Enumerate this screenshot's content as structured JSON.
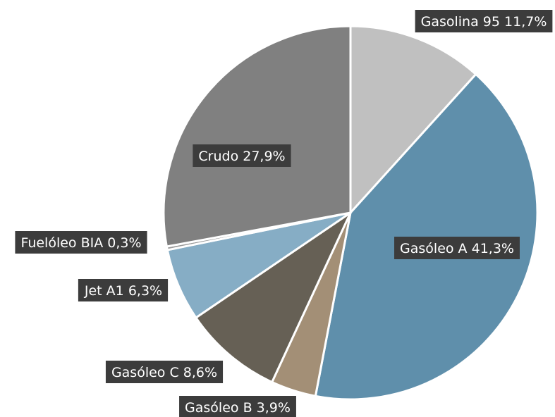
{
  "chart_data": {
    "type": "pie",
    "categories": [
      "Gasolina 95",
      "Gasóleo A",
      "Gasóleo B",
      "Gasóleo C",
      "Jet A1",
      "Fuelóleo BIA",
      "Crudo"
    ],
    "values": [
      11.7,
      41.3,
      3.9,
      8.6,
      6.3,
      0.3,
      27.9
    ],
    "value_labels": [
      "11,7%",
      "41,3%",
      "3,9%",
      "8,6%",
      "6,3%",
      "0,3%",
      "27,9%"
    ],
    "colors": [
      "#c0c0c0",
      "#5f8fab",
      "#a38f76",
      "#666055",
      "#86adc5",
      "#9a9a9a",
      "#808080"
    ]
  }
}
